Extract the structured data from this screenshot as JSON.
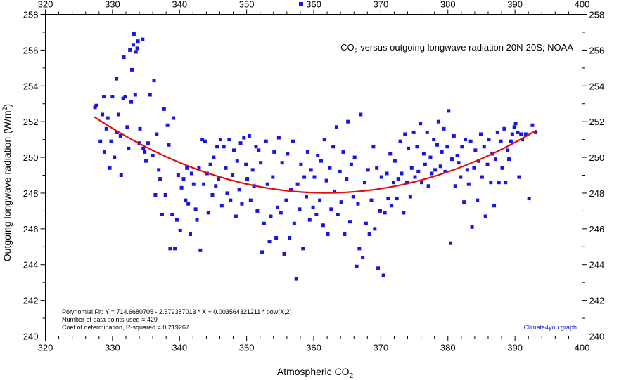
{
  "chart_data": {
    "type": "scatter",
    "title": "CO2 versus outgoing longwave radiation 20N-20S; NOAA",
    "title_parts": [
      "CO",
      "2",
      " versus outgoing longwave radiation 20N-20S; NOAA"
    ],
    "xlabel": "Atmospheric CO2",
    "xlabel_parts": [
      "Atmospheric CO",
      "2"
    ],
    "ylabel": "Outgoing longwave radiation (W/m2)",
    "ylabel_parts": [
      "Outgoing longwave radiation (W/m",
      "2",
      ")"
    ],
    "xlim": [
      320,
      400
    ],
    "ylim": [
      240,
      258
    ],
    "x_ticks": [
      320,
      330,
      340,
      350,
      360,
      370,
      380,
      390,
      400
    ],
    "y_ticks": [
      240,
      242,
      244,
      246,
      248,
      250,
      252,
      254,
      256,
      258
    ],
    "grid": false,
    "legend": {
      "position": "top-center",
      "marker": "square"
    },
    "colors": {
      "points": "#1515e6",
      "fit_line": "#e01010",
      "axis": "#000000",
      "credit": "#1a1acc"
    },
    "fit": {
      "type": "polynomial",
      "coefficients": [
        714.6680705,
        -2.579387013,
        0.003564321211
      ],
      "x_range": [
        327.3,
        393.2
      ]
    },
    "annotations": {
      "fit_equation": "Polynomial Fit:  Y = 714.6680705 - 2.579387013 * X + 0.003564321211 * pow(X,2)",
      "data_points": "Number of data points used = 429",
      "r_squared": "Coef of determination, R-squared = 0.219267",
      "credit": "Climate4you graph"
    },
    "series": [
      {
        "points": [
          [
            327.4,
            252.8
          ],
          [
            327.6,
            252.9
          ],
          [
            328.2,
            250.9
          ],
          [
            328.5,
            252.4
          ],
          [
            328.7,
            253.4
          ],
          [
            328.8,
            250.3
          ],
          [
            329.1,
            251.6
          ],
          [
            329.3,
            252.2
          ],
          [
            329.6,
            249.4
          ],
          [
            329.8,
            250.9
          ],
          [
            330.0,
            253.4
          ],
          [
            330.3,
            250.0
          ],
          [
            330.6,
            254.4
          ],
          [
            330.7,
            251.4
          ],
          [
            330.9,
            252.4
          ],
          [
            331.2,
            251.2
          ],
          [
            331.3,
            249.0
          ],
          [
            331.6,
            253.3
          ],
          [
            331.7,
            255.6
          ],
          [
            331.9,
            253.4
          ],
          [
            332.2,
            251.7
          ],
          [
            332.4,
            250.5
          ],
          [
            332.6,
            256.0
          ],
          [
            332.8,
            253.1
          ],
          [
            332.9,
            254.9
          ],
          [
            333.1,
            256.3
          ],
          [
            333.2,
            256.9
          ],
          [
            333.4,
            253.5
          ],
          [
            333.5,
            255.9
          ],
          [
            333.7,
            256.1
          ],
          [
            333.8,
            256.5
          ],
          [
            334.0,
            250.8
          ],
          [
            334.1,
            251.6
          ],
          [
            334.5,
            256.6
          ],
          [
            334.6,
            250.5
          ],
          [
            334.8,
            250.3
          ],
          [
            335.0,
            249.8
          ],
          [
            335.3,
            250.8
          ],
          [
            335.6,
            253.5
          ],
          [
            336.0,
            250.1
          ],
          [
            336.2,
            254.3
          ],
          [
            336.4,
            247.9
          ],
          [
            336.6,
            251.3
          ],
          [
            336.9,
            249.3
          ],
          [
            337.1,
            248.8
          ],
          [
            337.4,
            246.8
          ],
          [
            337.7,
            252.7
          ],
          [
            337.9,
            247.9
          ],
          [
            338.2,
            251.8
          ],
          [
            338.4,
            250.7
          ],
          [
            338.6,
            244.9
          ],
          [
            338.9,
            246.8
          ],
          [
            339.1,
            252.2
          ],
          [
            339.3,
            244.9
          ],
          [
            339.6,
            246.5
          ],
          [
            339.8,
            249.0
          ],
          [
            340.1,
            245.9
          ],
          [
            340.3,
            248.3
          ],
          [
            340.6,
            248.8
          ],
          [
            340.9,
            247.6
          ],
          [
            341.1,
            249.4
          ],
          [
            341.3,
            247.4
          ],
          [
            341.6,
            245.7
          ],
          [
            341.8,
            249.1
          ],
          [
            342.1,
            248.5
          ],
          [
            342.4,
            247.1
          ],
          [
            342.6,
            246.5
          ],
          [
            342.9,
            249.4
          ],
          [
            343.1,
            244.8
          ],
          [
            343.4,
            251.0
          ],
          [
            343.6,
            248.5
          ],
          [
            343.8,
            250.9
          ],
          [
            344.1,
            249.1
          ],
          [
            344.3,
            246.9
          ],
          [
            344.6,
            249.6
          ],
          [
            344.9,
            247.9
          ],
          [
            345.1,
            250.0
          ],
          [
            345.4,
            248.4
          ],
          [
            345.6,
            250.6
          ],
          [
            345.8,
            248.8
          ],
          [
            346.1,
            251.0
          ],
          [
            346.3,
            247.3
          ],
          [
            346.6,
            250.6
          ],
          [
            346.9,
            249.4
          ],
          [
            347.1,
            248.0
          ],
          [
            347.4,
            251.0
          ],
          [
            347.6,
            247.6
          ],
          [
            347.9,
            249.0
          ],
          [
            348.1,
            250.4
          ],
          [
            348.4,
            246.7
          ],
          [
            348.6,
            249.8
          ],
          [
            348.9,
            248.2
          ],
          [
            349.1,
            250.8
          ],
          [
            349.3,
            247.4
          ],
          [
            349.6,
            251.1
          ],
          [
            349.9,
            249.6
          ],
          [
            350.1,
            248.8
          ],
          [
            350.4,
            251.2
          ],
          [
            350.6,
            247.6
          ],
          [
            350.9,
            249.3
          ],
          [
            351.1,
            248.4
          ],
          [
            351.4,
            250.6
          ],
          [
            351.6,
            247.0
          ],
          [
            351.8,
            250.4
          ],
          [
            352.1,
            249.7
          ],
          [
            352.3,
            244.7
          ],
          [
            352.6,
            246.3
          ],
          [
            352.9,
            250.9
          ],
          [
            353.1,
            248.5
          ],
          [
            353.4,
            245.3
          ],
          [
            353.6,
            246.7
          ],
          [
            353.9,
            248.9
          ],
          [
            354.1,
            250.3
          ],
          [
            354.4,
            245.5
          ],
          [
            354.6,
            247.2
          ],
          [
            354.8,
            251.1
          ],
          [
            355.1,
            246.9
          ],
          [
            355.3,
            249.7
          ],
          [
            355.6,
            244.6
          ],
          [
            355.9,
            247.6
          ],
          [
            356.1,
            250.2
          ],
          [
            356.4,
            245.5
          ],
          [
            356.6,
            248.2
          ],
          [
            356.9,
            250.9
          ],
          [
            357.1,
            246.3
          ],
          [
            357.4,
            243.2
          ],
          [
            357.6,
            248.5
          ],
          [
            357.9,
            247.1
          ],
          [
            358.1,
            249.6
          ],
          [
            358.4,
            244.9
          ],
          [
            358.6,
            248.9
          ],
          [
            358.9,
            247.8
          ],
          [
            359.1,
            250.3
          ],
          [
            359.4,
            246.5
          ],
          [
            359.6,
            249.3
          ],
          [
            359.9,
            247.2
          ],
          [
            360.1,
            248.9
          ],
          [
            360.4,
            246.8
          ],
          [
            360.6,
            250.1
          ],
          [
            360.9,
            247.6
          ],
          [
            361.1,
            249.8
          ],
          [
            361.4,
            246.2
          ],
          [
            361.6,
            251.0
          ],
          [
            361.9,
            248.7
          ],
          [
            362.1,
            245.7
          ],
          [
            362.4,
            249.4
          ],
          [
            362.6,
            247.1
          ],
          [
            362.9,
            250.6
          ],
          [
            363.1,
            248.1
          ],
          [
            363.4,
            251.7
          ],
          [
            363.6,
            246.8
          ],
          [
            363.9,
            249.2
          ],
          [
            364.1,
            247.5
          ],
          [
            364.4,
            250.3
          ],
          [
            364.6,
            245.7
          ],
          [
            364.9,
            248.8
          ],
          [
            365.1,
            252.0
          ],
          [
            365.4,
            246.4
          ],
          [
            365.6,
            249.6
          ],
          [
            365.9,
            247.8
          ],
          [
            366.1,
            250.0
          ],
          [
            366.4,
            243.9
          ],
          [
            366.6,
            247.4
          ],
          [
            366.8,
            244.9
          ],
          [
            367.0,
            252.4
          ],
          [
            367.3,
            244.4
          ],
          [
            367.6,
            248.6
          ],
          [
            367.8,
            246.3
          ],
          [
            368.1,
            249.3
          ],
          [
            368.3,
            245.7
          ],
          [
            368.6,
            247.6
          ],
          [
            368.9,
            250.6
          ],
          [
            369.1,
            246.0
          ],
          [
            369.4,
            249.4
          ],
          [
            369.6,
            243.8
          ],
          [
            369.9,
            247.0
          ],
          [
            370.1,
            248.9
          ],
          [
            370.4,
            243.4
          ],
          [
            370.6,
            246.9
          ],
          [
            370.9,
            249.1
          ],
          [
            371.1,
            247.7
          ],
          [
            371.4,
            250.2
          ],
          [
            371.6,
            247.3
          ],
          [
            371.9,
            248.6
          ],
          [
            372.1,
            249.8
          ],
          [
            372.4,
            247.7
          ],
          [
            372.6,
            248.8
          ],
          [
            372.9,
            250.9
          ],
          [
            373.1,
            249.1
          ],
          [
            373.4,
            246.9
          ],
          [
            373.6,
            251.3
          ],
          [
            373.9,
            248.6
          ],
          [
            374.1,
            250.5
          ],
          [
            374.4,
            247.8
          ],
          [
            374.6,
            249.4
          ],
          [
            374.9,
            251.4
          ],
          [
            375.1,
            248.9
          ],
          [
            375.4,
            250.6
          ],
          [
            375.6,
            249.2
          ],
          [
            375.9,
            251.9
          ],
          [
            376.1,
            248.6
          ],
          [
            376.4,
            250.2
          ],
          [
            376.6,
            249.6
          ],
          [
            376.9,
            251.4
          ],
          [
            377.1,
            248.4
          ],
          [
            377.4,
            250.0
          ],
          [
            377.6,
            249.1
          ],
          [
            377.9,
            251.0
          ],
          [
            378.1,
            249.3
          ],
          [
            378.4,
            250.7
          ],
          [
            378.6,
            252.0
          ],
          [
            378.9,
            249.5
          ],
          [
            379.1,
            250.3
          ],
          [
            379.4,
            251.6
          ],
          [
            379.6,
            249.2
          ],
          [
            379.9,
            250.6
          ],
          [
            380.1,
            252.6
          ],
          [
            380.4,
            245.2
          ],
          [
            380.6,
            249.9
          ],
          [
            380.9,
            251.2
          ],
          [
            381.1,
            248.4
          ],
          [
            381.4,
            250.1
          ],
          [
            381.6,
            249.7
          ],
          [
            381.9,
            248.9
          ],
          [
            382.1,
            250.6
          ],
          [
            382.4,
            247.5
          ],
          [
            382.6,
            251.0
          ],
          [
            382.9,
            249.3
          ],
          [
            383.1,
            248.5
          ],
          [
            383.4,
            250.9
          ],
          [
            383.6,
            246.1
          ],
          [
            383.9,
            249.4
          ],
          [
            384.1,
            250.4
          ],
          [
            384.4,
            247.6
          ],
          [
            384.6,
            249.8
          ],
          [
            384.9,
            251.3
          ],
          [
            385.1,
            248.9
          ],
          [
            385.4,
            250.6
          ],
          [
            385.6,
            246.7
          ],
          [
            385.9,
            249.6
          ],
          [
            386.1,
            251.0
          ],
          [
            386.4,
            248.6
          ],
          [
            386.6,
            250.2
          ],
          [
            386.9,
            247.3
          ],
          [
            387.1,
            249.9
          ],
          [
            387.4,
            251.4
          ],
          [
            387.6,
            248.6
          ],
          [
            387.9,
            250.9
          ],
          [
            388.1,
            249.4
          ],
          [
            388.4,
            251.6
          ],
          [
            388.6,
            248.6
          ],
          [
            388.9,
            250.4
          ],
          [
            389.1,
            249.9
          ],
          [
            389.4,
            250.9
          ],
          [
            389.6,
            251.3
          ],
          [
            389.9,
            251.7
          ],
          [
            390.1,
            251.9
          ],
          [
            390.4,
            251.4
          ],
          [
            390.6,
            248.9
          ],
          [
            390.9,
            251.3
          ],
          [
            391.1,
            251.0
          ],
          [
            391.6,
            251.3
          ],
          [
            392.1,
            247.7
          ],
          [
            392.6,
            251.8
          ],
          [
            393.1,
            251.4
          ]
        ]
      }
    ]
  }
}
